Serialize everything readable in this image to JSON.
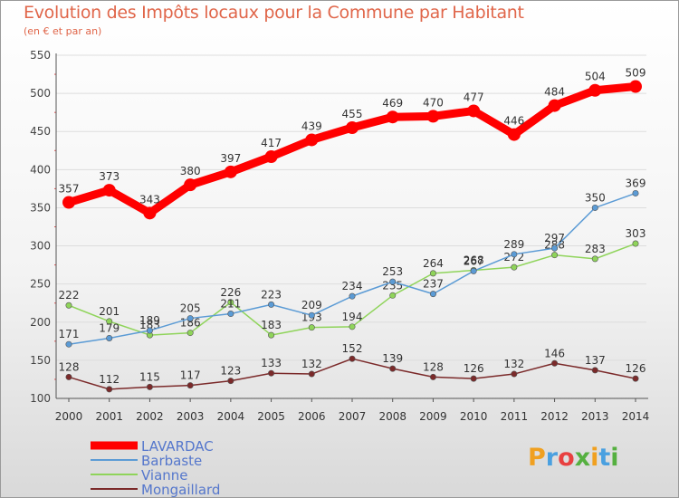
{
  "title": "Evolution des Impôts locaux pour la Commune par Habitant",
  "subtitle": "(en € et par an)",
  "logo_text": "Proxiti",
  "logo_colors": [
    "#f0a020",
    "#4aa0e0",
    "#e84040",
    "#55b040",
    "#f0a020",
    "#4aa0e0",
    "#55b040"
  ],
  "chart_data": {
    "type": "line",
    "x": [
      "2000",
      "2001",
      "2002",
      "2003",
      "2004",
      "2005",
      "2006",
      "2007",
      "2008",
      "2009",
      "2010",
      "2011",
      "2012",
      "2013",
      "2014"
    ],
    "ylim": [
      100,
      550
    ],
    "yticks": [
      100,
      150,
      200,
      250,
      300,
      350,
      400,
      450,
      500,
      550
    ],
    "series": [
      {
        "name": "LAVARDAC",
        "color": "#ff0000",
        "thick": true,
        "values": [
          357,
          373,
          343,
          380,
          397,
          417,
          439,
          455,
          469,
          470,
          477,
          446,
          484,
          504,
          509
        ]
      },
      {
        "name": "Barbaste",
        "color": "#5b9bd5",
        "values": [
          171,
          179,
          189,
          205,
          211,
          223,
          209,
          234,
          253,
          237,
          267,
          289,
          297,
          350,
          369
        ]
      },
      {
        "name": "Vianne",
        "color": "#8fd45a",
        "values": [
          222,
          201,
          183,
          186,
          226,
          183,
          193,
          194,
          235,
          264,
          268,
          272,
          288,
          283,
          303
        ]
      },
      {
        "name": "Mongaillard",
        "color": "#7b2a2a",
        "values": [
          128,
          112,
          115,
          117,
          123,
          133,
          132,
          152,
          139,
          128,
          126,
          132,
          146,
          137,
          126
        ]
      }
    ]
  }
}
